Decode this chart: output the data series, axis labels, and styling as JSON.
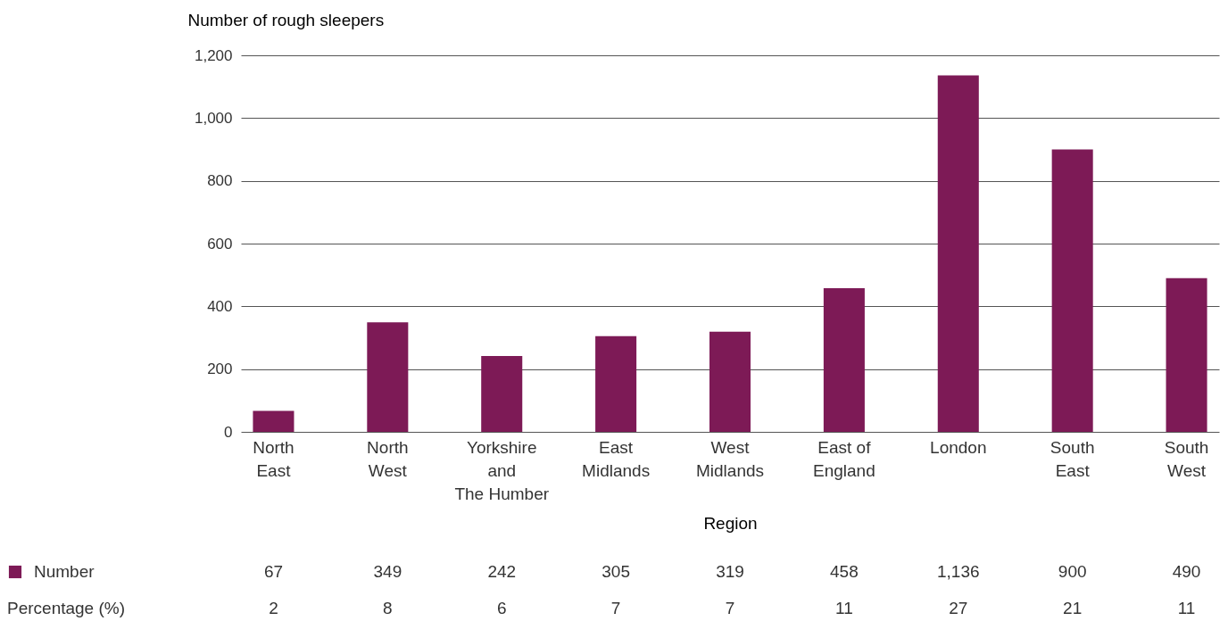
{
  "chart_data": {
    "type": "bar",
    "ylabel": "Number of rough sleepers",
    "xlabel": "Region",
    "categories": [
      "North\nEast",
      "North\nWest",
      "Yorkshire\nand\nThe Humber",
      "East\nMidlands",
      "West\nMidlands",
      "East of\nEngland",
      "London",
      "South\nEast",
      "South\nWest"
    ],
    "series": [
      {
        "name": "Number",
        "color": "#7d1a56",
        "values": [
          67,
          349,
          242,
          305,
          319,
          458,
          1136,
          900,
          490
        ]
      }
    ],
    "ylim": [
      0,
      1200
    ],
    "yticks": [
      0,
      200,
      400,
      600,
      800,
      {
        "value": 1000,
        "label": "1,000"
      },
      {
        "value": 1200,
        "label": "1,200"
      }
    ],
    "grid": "y",
    "legend": "bottom left",
    "annotations": [
      "67",
      "349",
      "242",
      "305",
      "319",
      "458",
      "1,136",
      "900",
      "490",
      "Percentage (%)",
      "2",
      "8",
      "6",
      "7",
      "7",
      "11",
      "27",
      "21",
      "11"
    ]
  }
}
